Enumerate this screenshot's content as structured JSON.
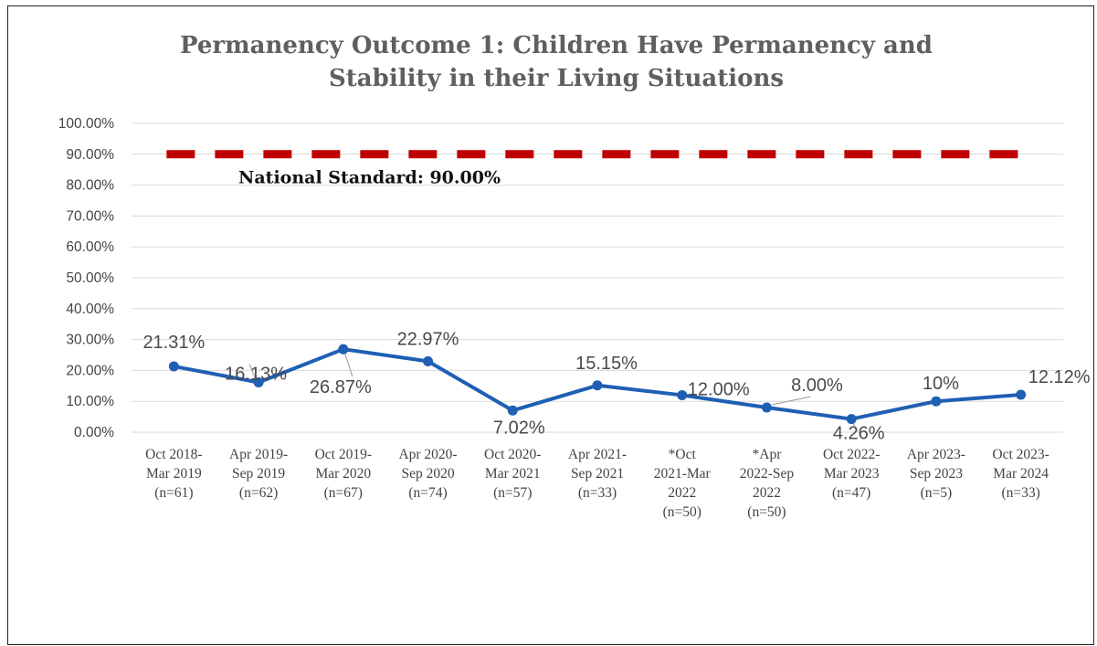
{
  "chart_data": {
    "type": "line",
    "title_lines": [
      "Permanency Outcome 1: Children Have Permanency and",
      "Stability in their Living Situations"
    ],
    "categories": [
      [
        "Oct 2018-",
        "Mar 2019",
        "(n=61)"
      ],
      [
        "Apr 2019-",
        "Sep 2019",
        "(n=62)"
      ],
      [
        "Oct 2019-",
        "Mar 2020",
        "(n=67)"
      ],
      [
        "Apr 2020-",
        "Sep 2020",
        "(n=74)"
      ],
      [
        "Oct 2020-",
        "Mar 2021",
        "(n=57)"
      ],
      [
        "Apr 2021-",
        "Sep 2021",
        "(n=33)"
      ],
      [
        "*Oct",
        "2021-Mar",
        "2022",
        "(n=50)"
      ],
      [
        "*Apr",
        "2022-Sep",
        "2022",
        "(n=50)"
      ],
      [
        "Oct 2022-",
        "Mar 2023",
        "(n=47)"
      ],
      [
        "Apr 2023-",
        "Sep 2023",
        "(n=5)"
      ],
      [
        "Oct 2023-",
        "Mar 2024",
        "(n=33)"
      ]
    ],
    "values": [
      21.31,
      16.13,
      26.87,
      22.97,
      7.02,
      15.15,
      12.0,
      8.0,
      4.26,
      10.0,
      12.12
    ],
    "data_labels": [
      "21.31%",
      "16.13%",
      "26.87%",
      "22.97%",
      "7.02%",
      "15.15%",
      "12.00%",
      "8.00%",
      "4.26%",
      "10%",
      "12.12%"
    ],
    "yticks": [
      "0.00%",
      "10.00%",
      "20.00%",
      "30.00%",
      "40.00%",
      "50.00%",
      "60.00%",
      "70.00%",
      "80.00%",
      "90.00%",
      "100.00%"
    ],
    "ylim": [
      0,
      100
    ],
    "grid": true,
    "line_color": "#1f5fb4",
    "reference_line": {
      "value": 90,
      "label": "National Standard: 90.00%",
      "color": "#c00000",
      "style": "dashed"
    }
  }
}
